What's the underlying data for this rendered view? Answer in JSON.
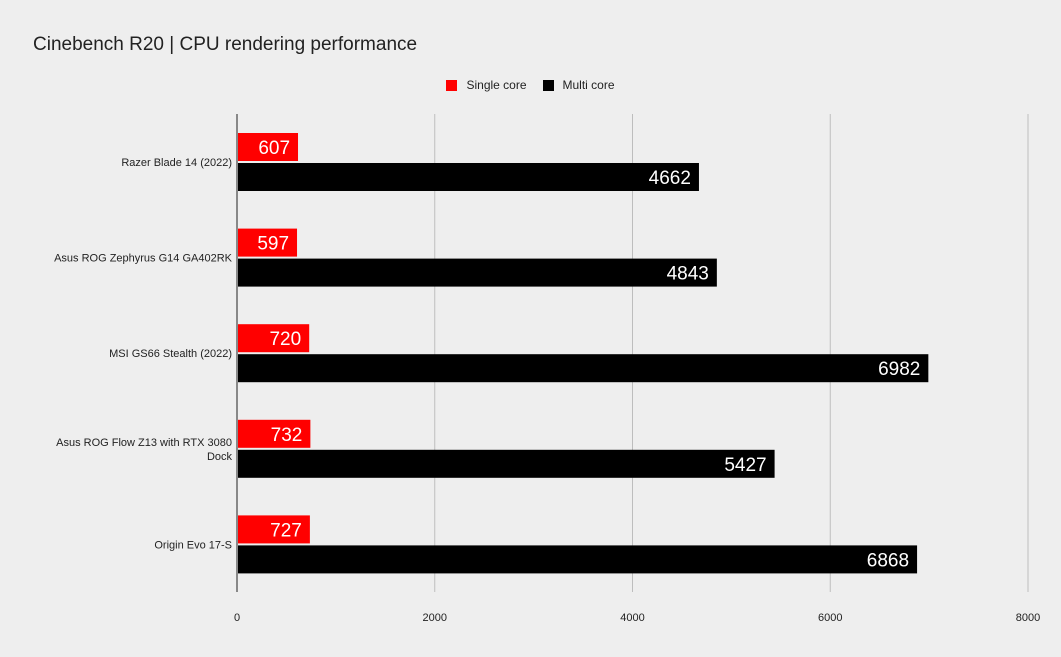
{
  "chart_data": {
    "type": "bar",
    "orientation": "horizontal",
    "title": "Cinebench R20 | CPU rendering performance",
    "categories": [
      "Razer Blade 14 (2022)",
      "Asus ROG Zephyrus G14 GA402RK",
      "MSI GS66 Stealth (2022)",
      "Asus ROG Flow Z13 with RTX 3080 Dock",
      "Origin Evo 17-S"
    ],
    "category_lines": [
      [
        "Razer Blade 14 (2022)"
      ],
      [
        "Asus ROG Zephyrus G14 GA402RK"
      ],
      [
        "MSI GS66 Stealth (2022)"
      ],
      [
        "Asus ROG Flow Z13 with RTX 3080",
        "Dock"
      ],
      [
        "Origin Evo 17-S"
      ]
    ],
    "series": [
      {
        "name": "Single core",
        "color": "#ff0000",
        "values": [
          607,
          597,
          720,
          732,
          727
        ]
      },
      {
        "name": "Multi core",
        "color": "#000000",
        "values": [
          4662,
          4843,
          6982,
          5427,
          6868
        ]
      }
    ],
    "xlim": [
      0,
      8000
    ],
    "xticks": [
      0,
      2000,
      4000,
      6000,
      8000
    ],
    "xlabel": "",
    "ylabel": "",
    "grid": true,
    "legend": "top-center",
    "data_labels": true
  }
}
